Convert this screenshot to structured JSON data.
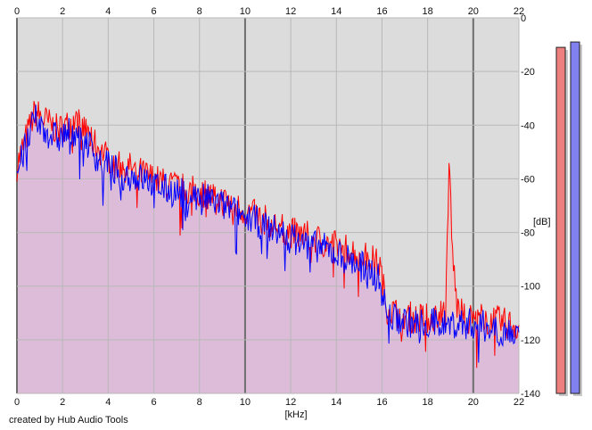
{
  "credit": "created by Hub Audio Tools",
  "colors": {
    "plot_bg": "#dcdcdc",
    "grid": "#b8b8b8",
    "grid_major": "#6e6e6e",
    "fill_blue": "#c0c0ff",
    "fill_red": "#f2b8b8",
    "line_red": "#ff0000",
    "line_blue": "#0000ff",
    "meter_red": "#ee7f7f",
    "meter_blue": "#8080ee"
  },
  "chart_data": {
    "type": "area",
    "title": "",
    "xlabel": "[kHz]",
    "ylabel": "[dB]",
    "xlim": [
      0,
      22
    ],
    "ylim": [
      -140,
      0
    ],
    "x_ticks": [
      0,
      2,
      4,
      6,
      8,
      10,
      12,
      14,
      16,
      18,
      20,
      22
    ],
    "x_tick_labels": [
      "0",
      "2",
      "4",
      "6",
      "8",
      "10",
      "12",
      "14",
      "16",
      "18",
      "20",
      "22"
    ],
    "y_ticks": [
      0,
      -20,
      -40,
      -60,
      -80,
      -100,
      -120,
      -140
    ],
    "y_tick_labels": [
      "0",
      "-20",
      "-40",
      "-60",
      "-80",
      "-100",
      "-120",
      "-140"
    ],
    "grid": true,
    "series": [
      {
        "color": "#ff0000",
        "x": [
          0,
          0.5,
          0.8,
          1.2,
          1.8,
          2.2,
          2.6,
          3.0,
          3.5,
          4.0,
          4.5,
          5.0,
          5.5,
          6.0,
          6.5,
          7.0,
          7.5,
          8.0,
          8.5,
          9.0,
          9.5,
          10.0,
          10.5,
          11.0,
          11.5,
          12.0,
          12.5,
          13.0,
          13.5,
          14.0,
          14.5,
          15.0,
          15.5,
          15.9,
          16.2,
          16.6,
          17.0,
          17.5,
          18.0,
          18.5,
          18.8,
          18.95,
          19.1,
          19.3,
          19.6,
          20.0,
          20.5,
          21.0,
          21.5,
          22.0
        ],
        "values": [
          -55,
          -42,
          -35,
          -38,
          -42,
          -40,
          -38,
          -42,
          -48,
          -52,
          -55,
          -56,
          -58,
          -60,
          -62,
          -63,
          -64,
          -65,
          -66,
          -68,
          -70,
          -72,
          -74,
          -76,
          -78,
          -80,
          -81,
          -82,
          -84,
          -85,
          -86,
          -88,
          -90,
          -92,
          -108,
          -110,
          -111,
          -112,
          -112,
          -111,
          -106,
          -52,
          -90,
          -108,
          -112,
          -112,
          -112,
          -113,
          -114,
          -115
        ]
      },
      {
        "color": "#0000ff",
        "x": [
          0,
          0.5,
          0.8,
          1.2,
          1.8,
          2.2,
          2.6,
          3.0,
          3.5,
          4.0,
          4.5,
          5.0,
          5.5,
          6.0,
          6.5,
          7.0,
          7.5,
          8.0,
          8.5,
          9.0,
          9.5,
          10.0,
          10.5,
          11.0,
          11.5,
          12.0,
          12.5,
          13.0,
          13.5,
          14.0,
          14.5,
          15.0,
          15.5,
          15.9,
          16.2,
          16.6,
          17.0,
          17.5,
          18.0,
          18.5,
          19.0,
          19.5,
          20.0,
          20.5,
          21.0,
          21.5,
          22.0
        ],
        "values": [
          -58,
          -45,
          -38,
          -42,
          -45,
          -43,
          -42,
          -45,
          -52,
          -55,
          -58,
          -59,
          -60,
          -62,
          -64,
          -65,
          -66,
          -67,
          -68,
          -70,
          -72,
          -74,
          -76,
          -78,
          -80,
          -82,
          -84,
          -85,
          -86,
          -88,
          -90,
          -92,
          -94,
          -98,
          -110,
          -112,
          -113,
          -114,
          -114,
          -114,
          -114,
          -114,
          -114,
          -115,
          -116,
          -117,
          -118
        ]
      }
    ],
    "meters": [
      {
        "color": "#ee7f7f",
        "level_db": -11
      },
      {
        "color": "#8080ee",
        "level_db": -9
      }
    ]
  }
}
